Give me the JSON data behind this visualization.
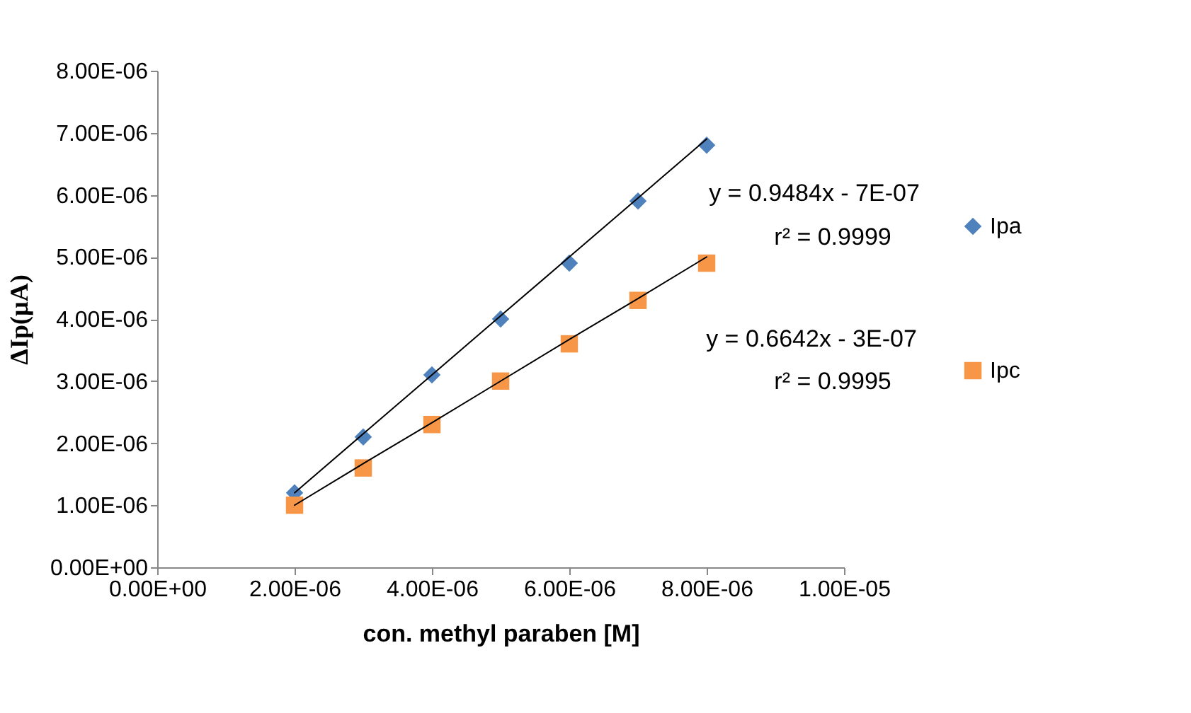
{
  "chart_data": {
    "type": "scatter",
    "xlabel": "con. methyl paraben [M]",
    "ylabel": "ΔIp(µA)",
    "xlim": [
      0,
      1e-05
    ],
    "xticks": [
      {
        "value": 0,
        "label": "0.00E+00"
      },
      {
        "value": 2e-06,
        "label": "2.00E-06"
      },
      {
        "value": 4e-06,
        "label": "4.00E-06"
      },
      {
        "value": 6e-06,
        "label": "6.00E-06"
      },
      {
        "value": 8e-06,
        "label": "8.00E-06"
      },
      {
        "value": 1e-05,
        "label": "1.00E-05"
      }
    ],
    "ylim": [
      0,
      8e-06
    ],
    "yticks": [
      {
        "value": 0,
        "label": "0.00E+00"
      },
      {
        "value": 1e-06,
        "label": "1.00E-06"
      },
      {
        "value": 2e-06,
        "label": "2.00E-06"
      },
      {
        "value": 3e-06,
        "label": "3.00E-06"
      },
      {
        "value": 4e-06,
        "label": "4.00E-06"
      },
      {
        "value": 5e-06,
        "label": "5.00E-06"
      },
      {
        "value": 6e-06,
        "label": "6.00E-06"
      },
      {
        "value": 7e-06,
        "label": "7.00E-06"
      },
      {
        "value": 8e-06,
        "label": "8.00E-06"
      }
    ],
    "x": [
      2e-06,
      3e-06,
      4e-06,
      5e-06,
      6e-06,
      7e-06,
      8e-06
    ],
    "series": [
      {
        "name": "Ipa",
        "color": "#4f81bd",
        "marker": "diamond",
        "values": [
          1.2e-06,
          2.1e-06,
          3.1e-06,
          4e-06,
          4.9e-06,
          5.9e-06,
          6.8e-06
        ]
      },
      {
        "name": "Ipc",
        "color": "#f79646",
        "marker": "square",
        "values": [
          1e-06,
          1.6e-06,
          2.3e-06,
          3e-06,
          3.6e-06,
          4.3e-06,
          4.9e-06
        ]
      },
      {
        "type": "line",
        "color": "#000000",
        "values": [
          1.2e-06,
          2.15e-06,
          3.1e-06,
          4.05e-06,
          5e-06,
          5.95e-06,
          6.9e-06
        ]
      },
      {
        "type": "line",
        "color": "#000000",
        "values": [
          1e-06,
          1.67e-06,
          2.33e-06,
          3e-06,
          3.67e-06,
          4.33e-06,
          5e-06
        ]
      }
    ],
    "annotations": [
      "y = 0.9484x - 7E-07",
      "r² = 0.9999",
      "y = 0.6642x - 3E-07",
      "r² = 0.9995"
    ],
    "legend": "right",
    "grid": false
  }
}
